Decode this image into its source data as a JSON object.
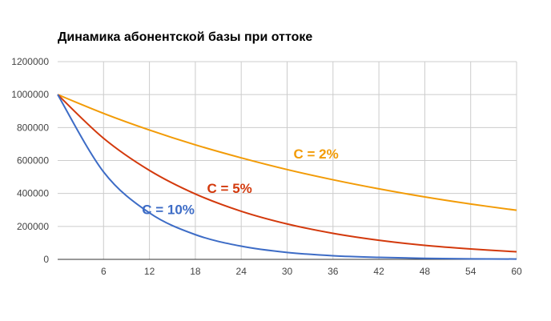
{
  "chart_data": {
    "type": "line",
    "title": "Динамика абонентской базы при оттоке",
    "xlabel": "",
    "ylabel": "",
    "xlim": [
      0,
      60
    ],
    "ylim": [
      0,
      1200000
    ],
    "x_ticks": [
      6,
      12,
      18,
      24,
      30,
      36,
      42,
      48,
      54,
      60
    ],
    "y_ticks": [
      0,
      200000,
      400000,
      600000,
      800000,
      1000000,
      1200000
    ],
    "grid": true,
    "legend": "none",
    "series": [
      {
        "name": "C = 2%",
        "color": "#f29b06",
        "x": [
          0,
          6,
          12,
          18,
          24,
          30,
          36,
          42,
          48,
          54,
          60
        ],
        "y": [
          1000000,
          886000,
          785000,
          695000,
          616000,
          545000,
          483000,
          428000,
          379000,
          336000,
          298000
        ]
      },
      {
        "name": "C = 5%",
        "color": "#d3390c",
        "x": [
          0,
          6,
          12,
          18,
          24,
          30,
          36,
          42,
          48,
          54,
          60
        ],
        "y": [
          1000000,
          735000,
          540000,
          397000,
          292000,
          215000,
          158000,
          116000,
          85000,
          63000,
          46000
        ]
      },
      {
        "name": "C = 10%",
        "color": "#3d6cc6",
        "x": [
          0,
          6,
          12,
          18,
          24,
          30,
          36,
          42,
          48,
          54,
          60
        ],
        "y": [
          1000000,
          531000,
          282000,
          150000,
          80000,
          42000,
          22000,
          12000,
          6000,
          3000,
          2000
        ]
      }
    ],
    "annotations": [
      {
        "text": "C = 2%",
        "color": "#f29b06"
      },
      {
        "text": "C = 5%",
        "color": "#d3390c"
      },
      {
        "text": "C = 10%",
        "color": "#3d6cc6"
      }
    ]
  }
}
